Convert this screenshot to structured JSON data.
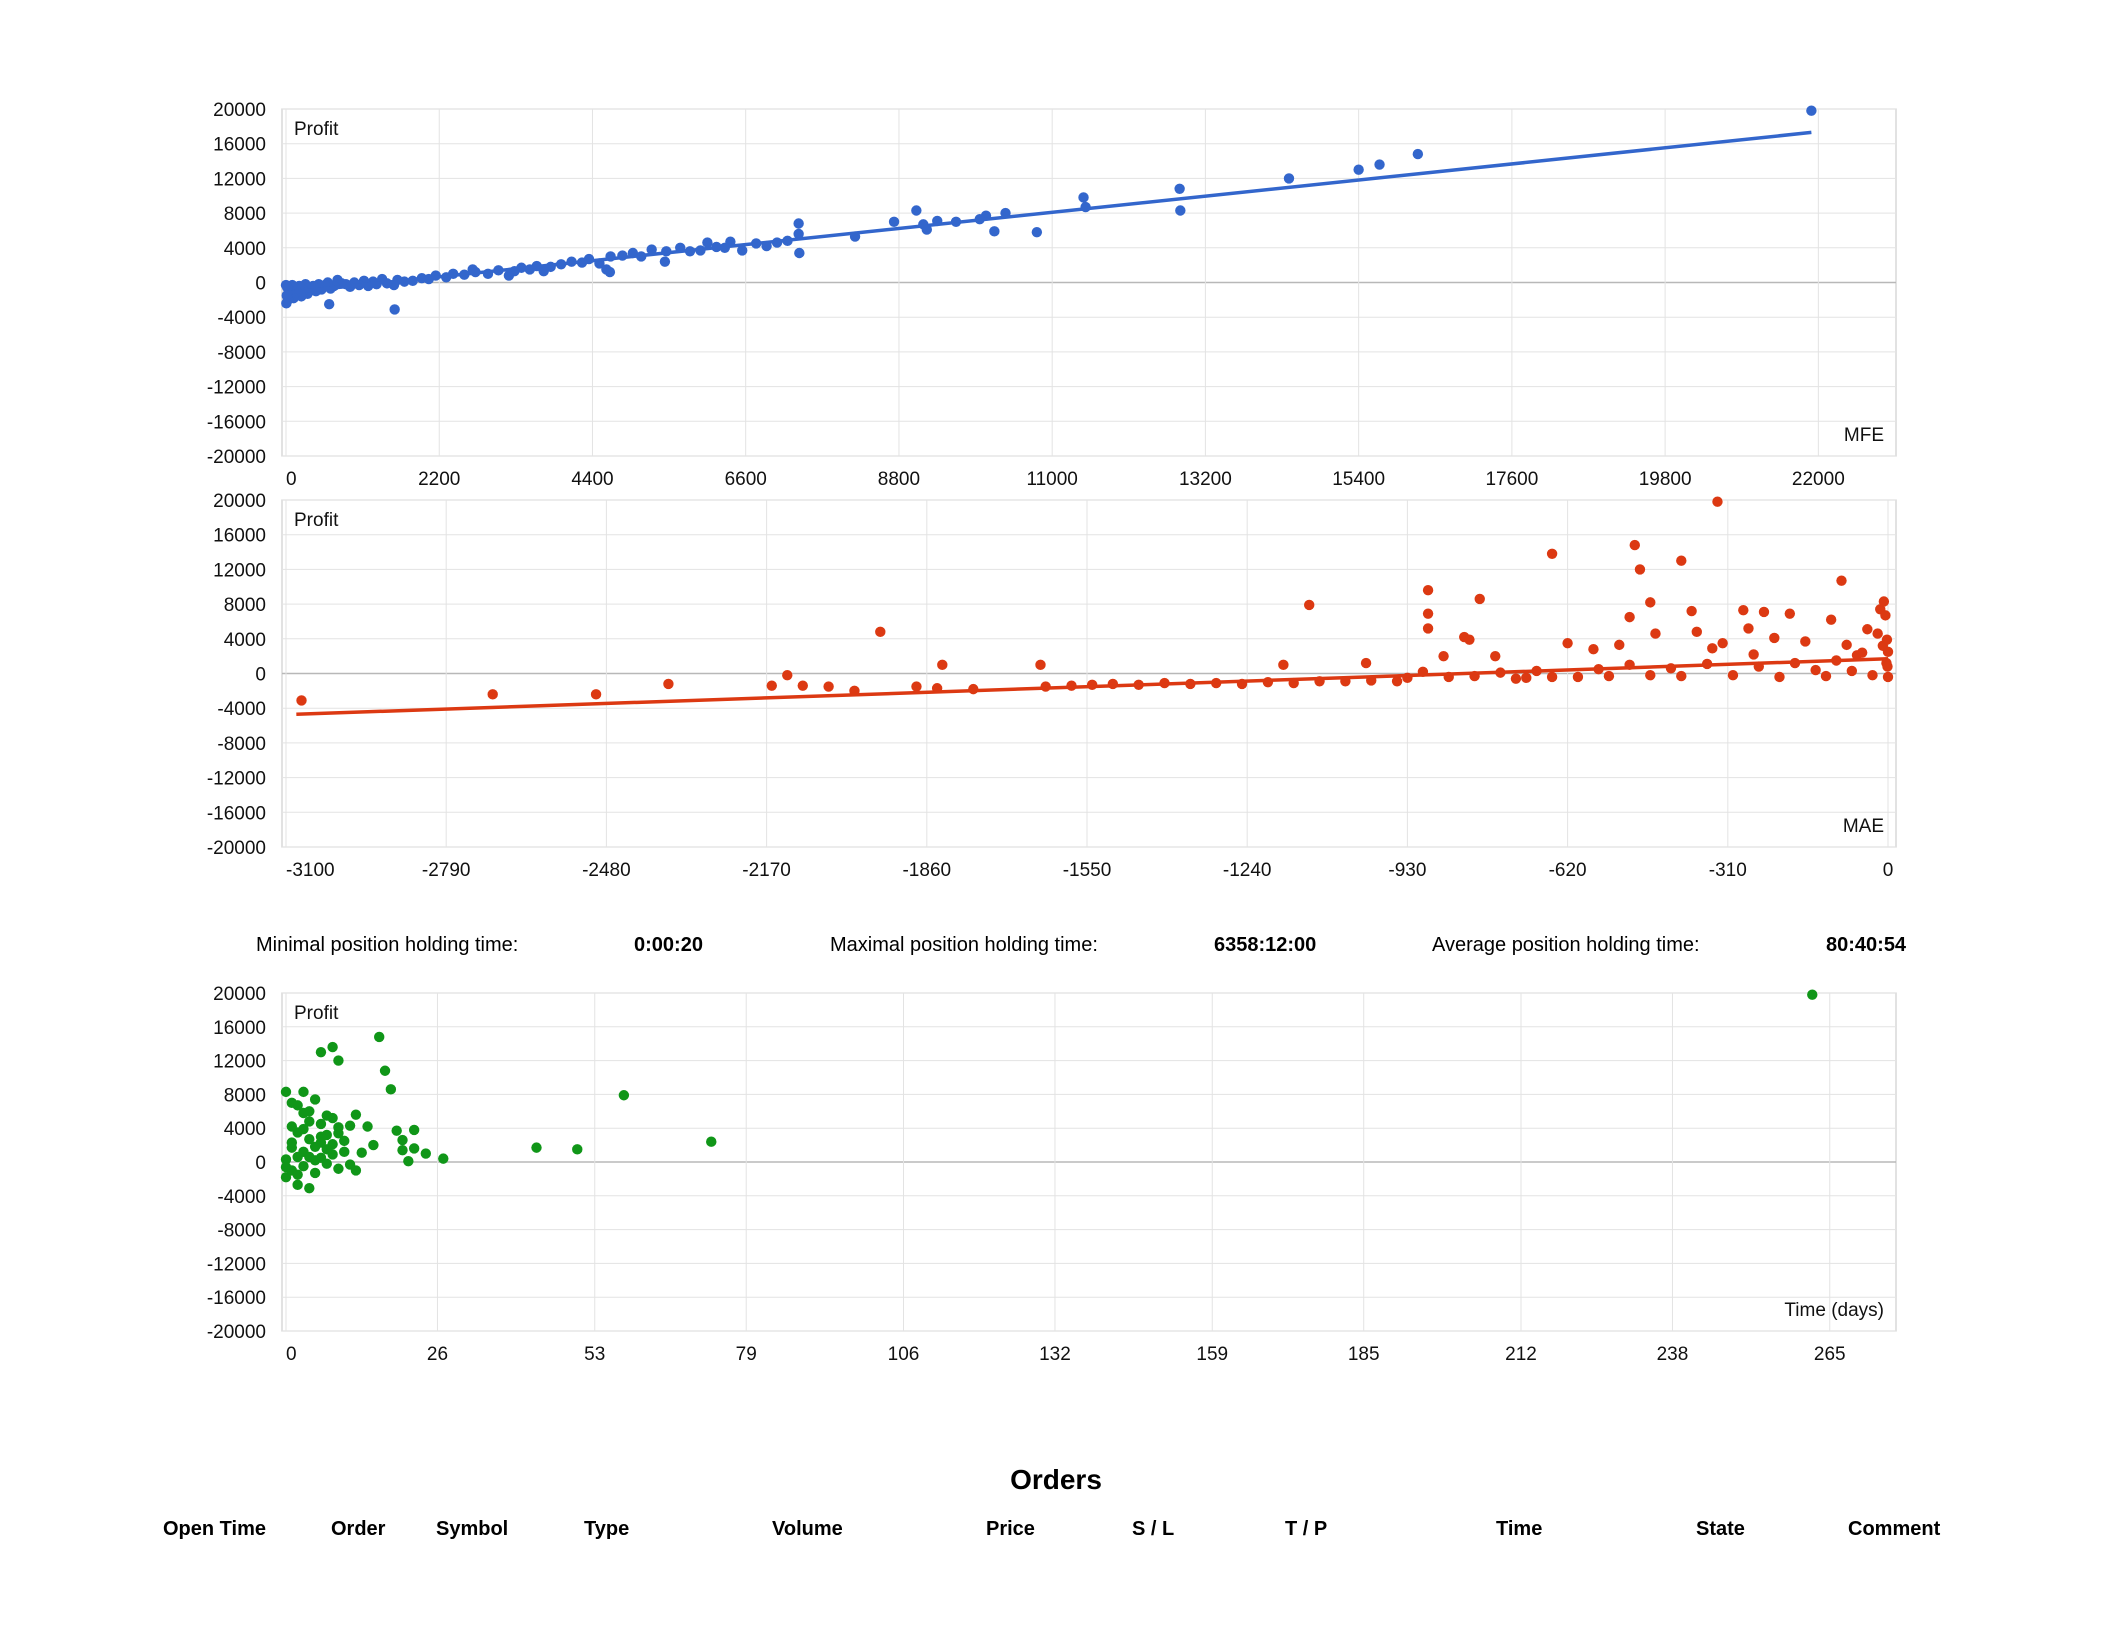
{
  "chart_data": [
    {
      "type": "scatter",
      "id": "mfe",
      "color": "#3366cc",
      "corner_label": "Profit",
      "axis_label": "MFE",
      "xlim": [
        0,
        23000
      ],
      "ylim": [
        -20000,
        20000
      ],
      "x_ticks": [
        0,
        2200,
        4400,
        6600,
        8800,
        11000,
        13200,
        15400,
        17600,
        19800,
        22000
      ],
      "y_ticks": [
        20000,
        16000,
        12000,
        8000,
        4000,
        0,
        -4000,
        -8000,
        -12000,
        -16000,
        -20000
      ],
      "trend": {
        "from": [
          0,
          -1200
        ],
        "to": [
          21900,
          17300
        ]
      },
      "points": [
        [
          21900,
          19800
        ],
        [
          16250,
          14800
        ],
        [
          15700,
          13600
        ],
        [
          15400,
          13000
        ],
        [
          14400,
          12000
        ],
        [
          12830,
          10800
        ],
        [
          12840,
          8300
        ],
        [
          11450,
          9800
        ],
        [
          11480,
          8700
        ],
        [
          10780,
          5800
        ],
        [
          10330,
          8000
        ],
        [
          10170,
          5900
        ],
        [
          10050,
          7700
        ],
        [
          9960,
          7300
        ],
        [
          9620,
          7000
        ],
        [
          9350,
          7100
        ],
        [
          9050,
          8300
        ],
        [
          9150,
          6700
        ],
        [
          9200,
          6100
        ],
        [
          8730,
          7000
        ],
        [
          8170,
          5300
        ],
        [
          7360,
          6800
        ],
        [
          7360,
          5600
        ],
        [
          7370,
          3400
        ],
        [
          7200,
          4800
        ],
        [
          7050,
          4600
        ],
        [
          6900,
          4200
        ],
        [
          6750,
          4500
        ],
        [
          6550,
          3700
        ],
        [
          6380,
          4700
        ],
        [
          6300,
          4000
        ],
        [
          6180,
          4100
        ],
        [
          6050,
          4600
        ],
        [
          5950,
          3700
        ],
        [
          5800,
          3600
        ],
        [
          5660,
          4000
        ],
        [
          5460,
          3600
        ],
        [
          5440,
          2400
        ],
        [
          5250,
          3800
        ],
        [
          5100,
          3000
        ],
        [
          4980,
          3400
        ],
        [
          4830,
          3100
        ],
        [
          4660,
          3000
        ],
        [
          4600,
          1500
        ],
        [
          4500,
          2200
        ],
        [
          4350,
          2700
        ],
        [
          4250,
          2300
        ],
        [
          4100,
          2400
        ],
        [
          3950,
          2100
        ],
        [
          3800,
          1800
        ],
        [
          3600,
          1900
        ],
        [
          3500,
          1500
        ],
        [
          3380,
          1700
        ],
        [
          3280,
          1300
        ],
        [
          3200,
          800
        ],
        [
          3050,
          1400
        ],
        [
          2900,
          1000
        ],
        [
          2720,
          1200
        ],
        [
          2560,
          900
        ],
        [
          2400,
          1000
        ],
        [
          2300,
          600
        ],
        [
          2150,
          800
        ],
        [
          2050,
          400
        ],
        [
          1950,
          500
        ],
        [
          1820,
          200
        ],
        [
          1700,
          100
        ],
        [
          1600,
          300
        ],
        [
          1550,
          -300
        ],
        [
          1450,
          -100
        ],
        [
          1380,
          400
        ],
        [
          1300,
          -200
        ],
        [
          1250,
          100
        ],
        [
          1180,
          -400
        ],
        [
          1120,
          200
        ],
        [
          1050,
          -300
        ],
        [
          980,
          0
        ],
        [
          920,
          -500
        ],
        [
          860,
          -200
        ],
        [
          800,
          -100
        ],
        [
          740,
          300
        ],
        [
          690,
          -400
        ],
        [
          640,
          -700
        ],
        [
          600,
          0
        ],
        [
          560,
          -300
        ],
        [
          510,
          -800
        ],
        [
          470,
          -200
        ],
        [
          430,
          -1000
        ],
        [
          390,
          -400
        ],
        [
          350,
          -600
        ],
        [
          310,
          -1300
        ],
        [
          280,
          -200
        ],
        [
          250,
          -900
        ],
        [
          220,
          -1600
        ],
        [
          190,
          -400
        ],
        [
          160,
          -1100
        ],
        [
          130,
          -700
        ],
        [
          110,
          -1800
        ],
        [
          90,
          -300
        ],
        [
          70,
          -1300
        ],
        [
          50,
          -900
        ],
        [
          30,
          -2000
        ],
        [
          20,
          -600
        ],
        [
          10,
          -1500
        ],
        [
          5,
          -2400
        ],
        [
          0,
          -300
        ],
        [
          1560,
          -3100
        ],
        [
          620,
          -2500
        ],
        [
          2680,
          1500
        ],
        [
          3700,
          1300
        ],
        [
          4650,
          1200
        ]
      ]
    },
    {
      "type": "scatter",
      "id": "mae",
      "color": "#dc3912",
      "corner_label": "Profit",
      "axis_label": "MAE",
      "xlim": [
        -3100,
        0
      ],
      "ylim": [
        -20000,
        20000
      ],
      "x_ticks": [
        -3100,
        -2790,
        -2480,
        -2170,
        -1860,
        -1550,
        -1240,
        -930,
        -620,
        -310,
        0
      ],
      "y_ticks": [
        20000,
        16000,
        12000,
        8000,
        4000,
        0,
        -4000,
        -8000,
        -12000,
        -16000,
        -20000
      ],
      "trend": {
        "from": [
          -3080,
          -4700
        ],
        "to": [
          0,
          1700
        ]
      },
      "points": [
        [
          -3070,
          -3100
        ],
        [
          -2700,
          -2400
        ],
        [
          -2500,
          -2400
        ],
        [
          -2360,
          -1200
        ],
        [
          -2160,
          -1400
        ],
        [
          -2130,
          -200
        ],
        [
          -2100,
          -1400
        ],
        [
          -2050,
          -1500
        ],
        [
          -2000,
          -2000
        ],
        [
          -1950,
          4800
        ],
        [
          -1880,
          -1500
        ],
        [
          -1840,
          -1700
        ],
        [
          -1830,
          1000
        ],
        [
          -1770,
          -1800
        ],
        [
          -1640,
          1000
        ],
        [
          -1630,
          -1500
        ],
        [
          -1580,
          -1400
        ],
        [
          -1540,
          -1300
        ],
        [
          -1500,
          -1200
        ],
        [
          -1450,
          -1300
        ],
        [
          -1400,
          -1100
        ],
        [
          -1350,
          -1200
        ],
        [
          -1300,
          -1100
        ],
        [
          -1250,
          -1200
        ],
        [
          -1200,
          -1000
        ],
        [
          -1150,
          -1100
        ],
        [
          -1100,
          -900
        ],
        [
          -1050,
          -900
        ],
        [
          -1000,
          -800
        ],
        [
          -950,
          -900
        ],
        [
          -1120,
          7900
        ],
        [
          -1170,
          1000
        ],
        [
          -1010,
          1200
        ],
        [
          -890,
          9600
        ],
        [
          -890,
          6900
        ],
        [
          -890,
          5200
        ],
        [
          -860,
          2000
        ],
        [
          -790,
          8600
        ],
        [
          -820,
          4200
        ],
        [
          -810,
          3900
        ],
        [
          -760,
          2000
        ],
        [
          -700,
          -500
        ],
        [
          -650,
          -400
        ],
        [
          -650,
          13800
        ],
        [
          -620,
          3500
        ],
        [
          -570,
          2800
        ],
        [
          -520,
          3300
        ],
        [
          -500,
          6500
        ],
        [
          -490,
          14800
        ],
        [
          -480,
          12000
        ],
        [
          -460,
          8200
        ],
        [
          -450,
          4600
        ],
        [
          -400,
          13000
        ],
        [
          -380,
          7200
        ],
        [
          -370,
          4800
        ],
        [
          -340,
          2900
        ],
        [
          -330,
          19800
        ],
        [
          -320,
          3500
        ],
        [
          -280,
          7300
        ],
        [
          -270,
          5200
        ],
        [
          -260,
          2200
        ],
        [
          -240,
          7100
        ],
        [
          -220,
          4100
        ],
        [
          -190,
          6900
        ],
        [
          -160,
          3700
        ],
        [
          -110,
          6200
        ],
        [
          -90,
          10700
        ],
        [
          -80,
          3300
        ],
        [
          -60,
          2100
        ],
        [
          -40,
          5100
        ],
        [
          -20,
          4600
        ],
        [
          -15,
          7400
        ],
        [
          -10,
          3200
        ],
        [
          -8,
          8300
        ],
        [
          -5,
          6700
        ],
        [
          -3,
          1200
        ],
        [
          -2,
          3900
        ],
        [
          -1,
          800
        ],
        [
          0,
          2500
        ],
        [
          0,
          -400
        ],
        [
          -930,
          -500
        ],
        [
          -900,
          200
        ],
        [
          -850,
          -400
        ],
        [
          -800,
          -300
        ],
        [
          -750,
          100
        ],
        [
          -720,
          -600
        ],
        [
          -680,
          300
        ],
        [
          -600,
          -400
        ],
        [
          -560,
          500
        ],
        [
          -540,
          -300
        ],
        [
          -500,
          1000
        ],
        [
          -460,
          -200
        ],
        [
          -420,
          600
        ],
        [
          -400,
          -300
        ],
        [
          -350,
          1100
        ],
        [
          -300,
          -200
        ],
        [
          -250,
          800
        ],
        [
          -210,
          -400
        ],
        [
          -180,
          1200
        ],
        [
          -140,
          400
        ],
        [
          -120,
          -300
        ],
        [
          -100,
          1500
        ],
        [
          -70,
          300
        ],
        [
          -50,
          2400
        ],
        [
          -30,
          -200
        ]
      ]
    },
    {
      "type": "scatter",
      "id": "holding",
      "color": "#109618",
      "corner_label": "Profit",
      "axis_label": "Time (days)",
      "xlim": [
        0,
        275
      ],
      "ylim": [
        -20000,
        20000
      ],
      "x_ticks": [
        0,
        26,
        53,
        79,
        106,
        132,
        159,
        185,
        212,
        238,
        265
      ],
      "y_ticks": [
        20000,
        16000,
        12000,
        8000,
        4000,
        0,
        -4000,
        -8000,
        -12000,
        -16000,
        -20000
      ],
      "points": [
        [
          262,
          19800
        ],
        [
          16,
          14800
        ],
        [
          8,
          13600
        ],
        [
          6,
          13000
        ],
        [
          9,
          12000
        ],
        [
          17,
          10800
        ],
        [
          18,
          8600
        ],
        [
          58,
          7900
        ],
        [
          0,
          8300
        ],
        [
          3,
          8300
        ],
        [
          1,
          7000
        ],
        [
          2,
          6700
        ],
        [
          4,
          6000
        ],
        [
          5,
          7400
        ],
        [
          7,
          5500
        ],
        [
          12,
          5600
        ],
        [
          14,
          4200
        ],
        [
          19,
          3700
        ],
        [
          22,
          3800
        ],
        [
          20,
          2600
        ],
        [
          22,
          1600
        ],
        [
          20,
          1400
        ],
        [
          24,
          1000
        ],
        [
          27,
          400
        ],
        [
          21,
          100
        ],
        [
          15,
          2000
        ],
        [
          13,
          1100
        ],
        [
          11,
          -300
        ],
        [
          10,
          1200
        ],
        [
          9,
          -800
        ],
        [
          12,
          -1000
        ],
        [
          4,
          -3100
        ],
        [
          2,
          -2700
        ],
        [
          0,
          -1800
        ],
        [
          1,
          -1000
        ],
        [
          0,
          300
        ],
        [
          1,
          2300
        ],
        [
          2,
          3500
        ],
        [
          3,
          1200
        ],
        [
          4,
          2700
        ],
        [
          5,
          1800
        ],
        [
          6,
          4500
        ],
        [
          7,
          3200
        ],
        [
          8,
          900
        ],
        [
          9,
          4100
        ],
        [
          10,
          2500
        ],
        [
          11,
          4300
        ],
        [
          3,
          -500
        ],
        [
          5,
          -1300
        ],
        [
          6,
          500
        ],
        [
          7,
          -200
        ],
        [
          8,
          2100
        ],
        [
          2,
          600
        ],
        [
          4,
          4800
        ],
        [
          6,
          3000
        ],
        [
          1,
          1700
        ],
        [
          3,
          3900
        ],
        [
          5,
          200
        ],
        [
          7,
          1500
        ],
        [
          8,
          5200
        ],
        [
          0,
          -600
        ],
        [
          2,
          -1500
        ],
        [
          4,
          600
        ],
        [
          6,
          2300
        ],
        [
          43,
          1700
        ],
        [
          50,
          1500
        ],
        [
          73,
          2400
        ],
        [
          1,
          4200
        ],
        [
          3,
          5800
        ],
        [
          9,
          3400
        ]
      ]
    }
  ],
  "stats": {
    "min_label": "Minimal position holding time:",
    "min_value": "0:00:20",
    "max_label": "Maximal position holding time:",
    "max_value": "6358:12:00",
    "avg_label": "Average position holding time:",
    "avg_value": "80:40:54"
  },
  "orders": {
    "title": "Orders",
    "columns": [
      "Open Time",
      "Order",
      "Symbol",
      "Type",
      "Volume",
      "Price",
      "S / L",
      "T / P",
      "Time",
      "State",
      "Comment"
    ]
  }
}
